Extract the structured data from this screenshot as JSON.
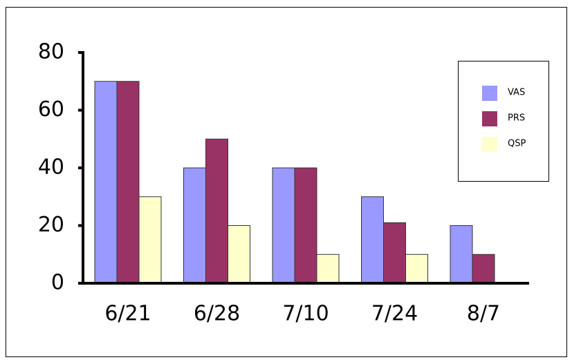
{
  "chart_data": {
    "type": "bar",
    "categories": [
      "6/21",
      "6/28",
      "7/10",
      "7/24",
      "8/7"
    ],
    "series": [
      {
        "name": "VAS",
        "color": "#9999ff",
        "values": [
          70,
          40,
          40,
          30,
          20
        ]
      },
      {
        "name": "PRS",
        "color": "#993366",
        "values": [
          70,
          50,
          40,
          21,
          10
        ]
      },
      {
        "name": "QSP",
        "color": "#ffffcc",
        "values": [
          30,
          20,
          10,
          10,
          0
        ]
      }
    ],
    "ylim": [
      0,
      80
    ],
    "yticks": [
      0,
      20,
      40,
      60,
      80
    ],
    "grid": false,
    "legend": "upper right"
  }
}
